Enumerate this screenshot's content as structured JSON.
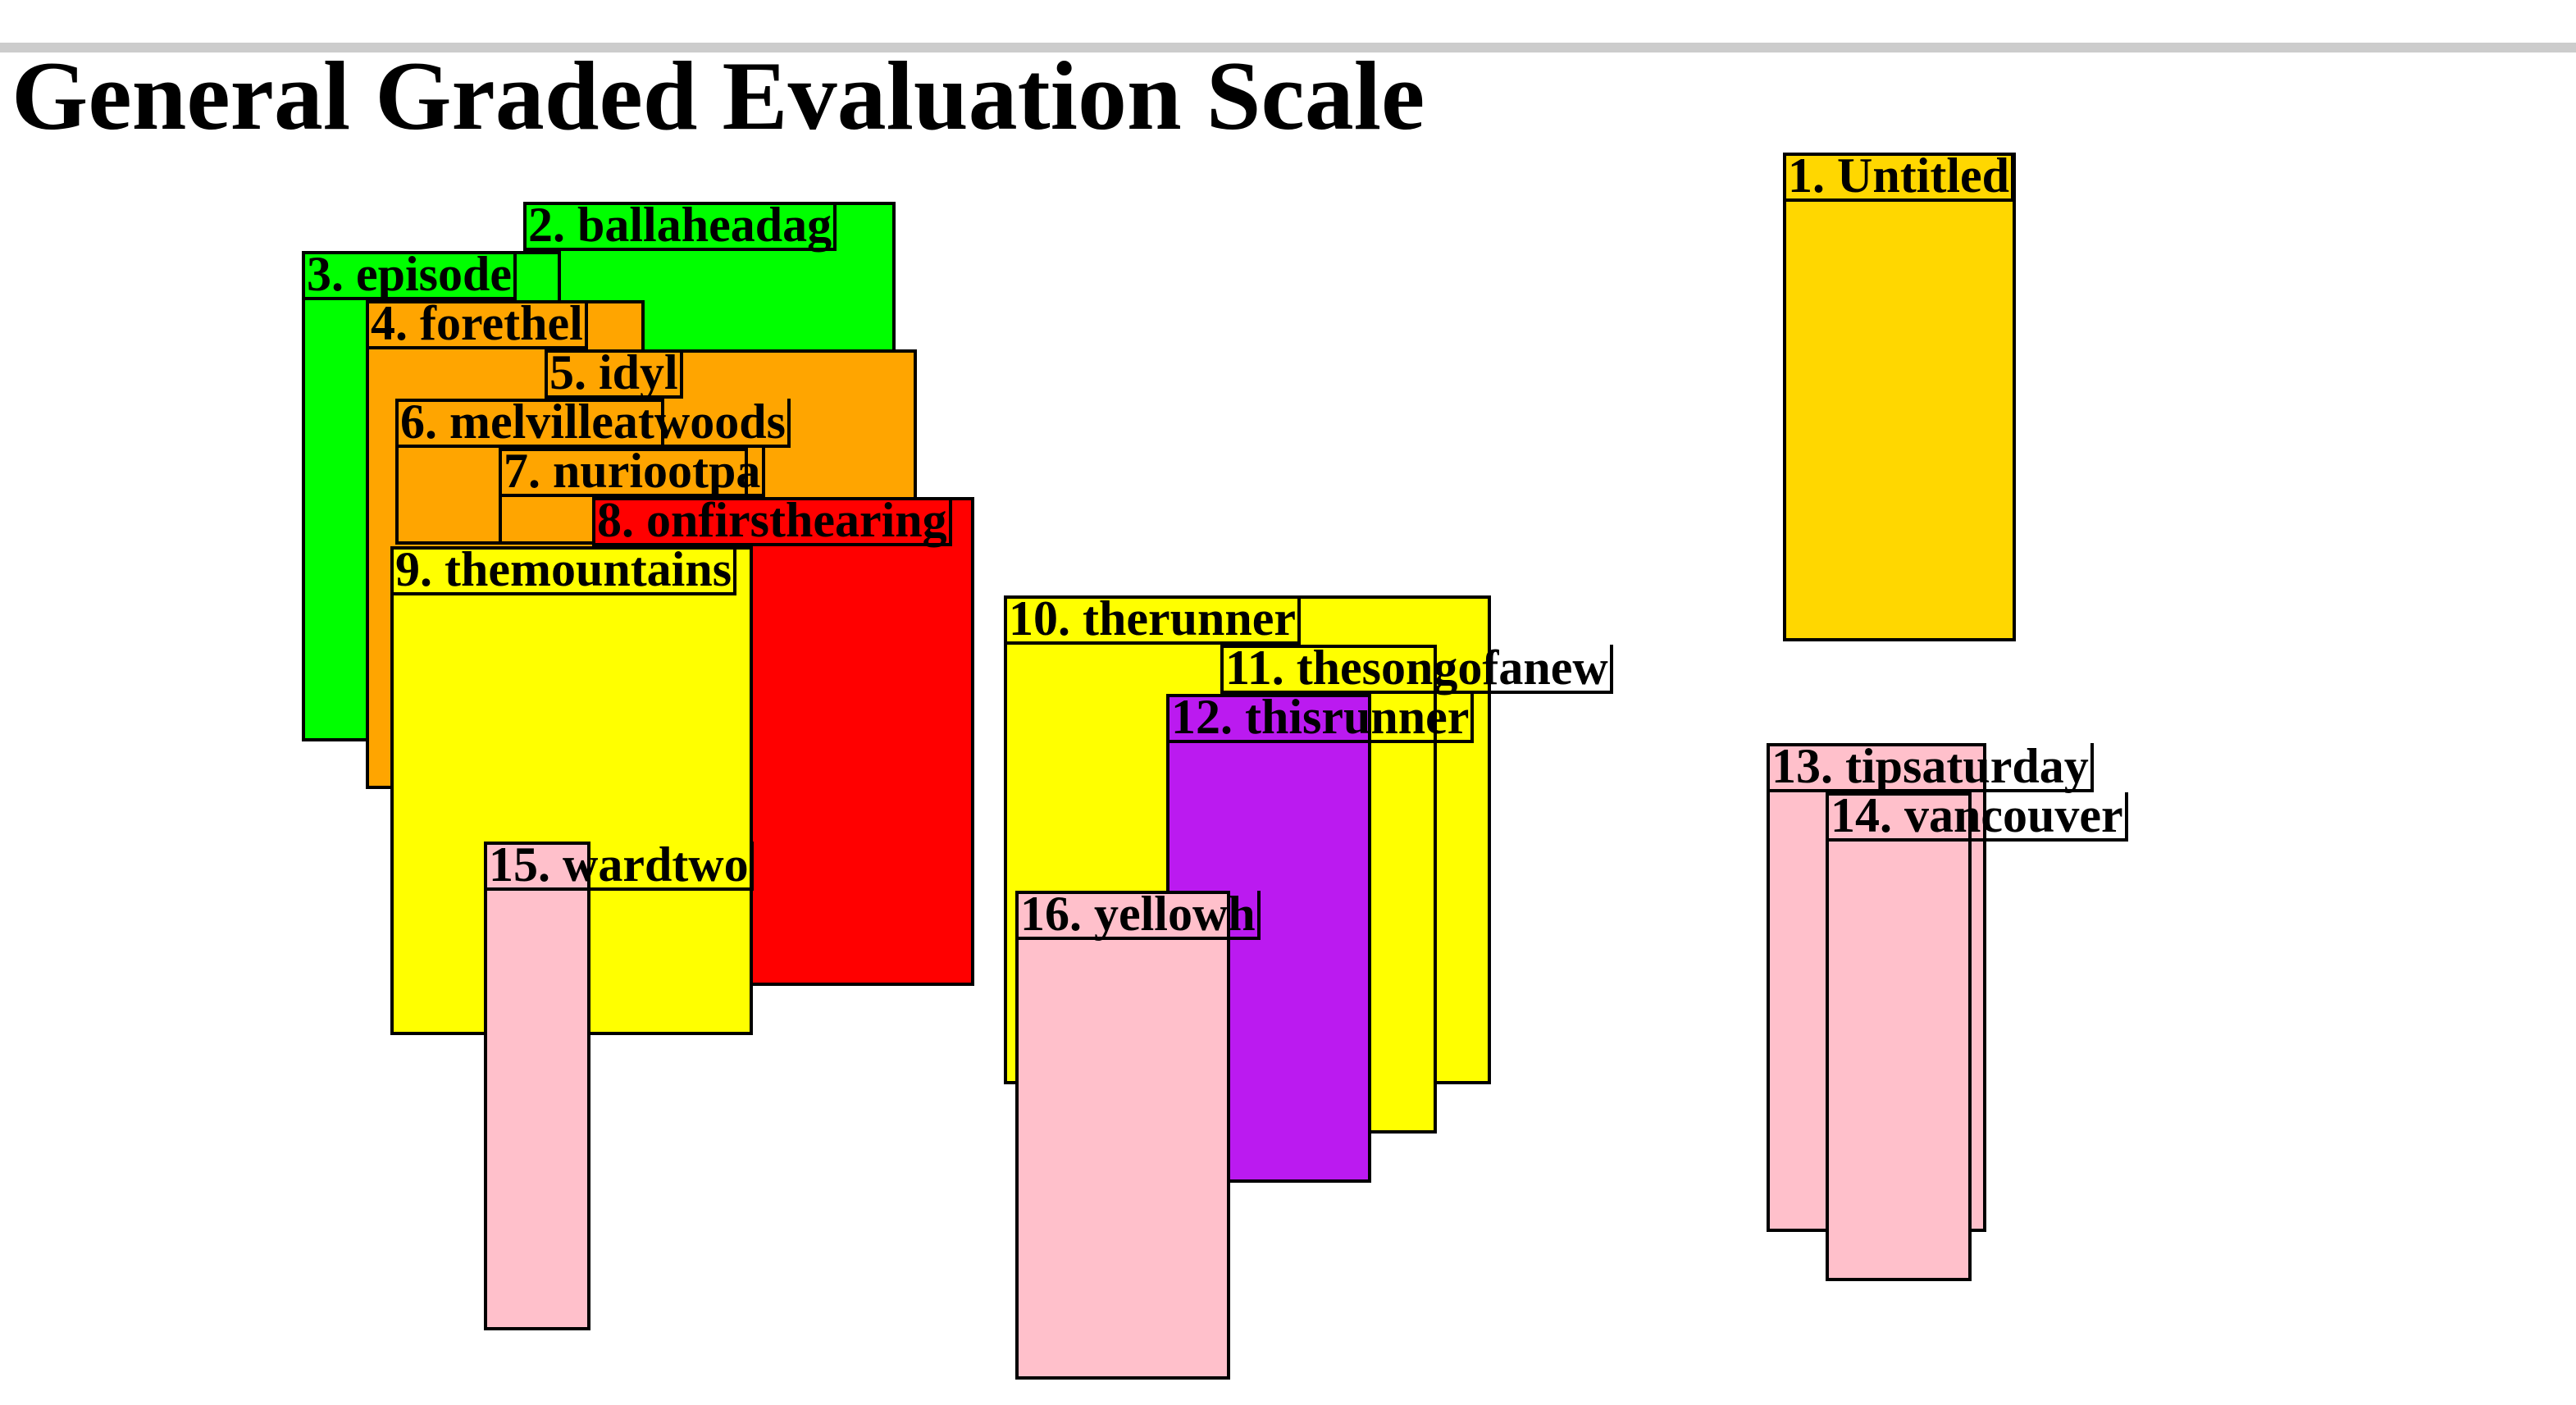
{
  "page": {
    "title": "General Graded Evaluation Scale"
  },
  "items": [
    {
      "label": "1. Untitled",
      "color": "#ffd700"
    },
    {
      "label": "2. ballaheadag",
      "color": "#00ff00"
    },
    {
      "label": "3. episode",
      "color": "#00ff00"
    },
    {
      "label": "4. forethel",
      "color": "#ffa500"
    },
    {
      "label": "5. idyl",
      "color": "#ffa500"
    },
    {
      "label": "6. melvilleatwoods",
      "color": "#ffa500"
    },
    {
      "label": "7. nuriootpa",
      "color": "#ffa500"
    },
    {
      "label": "8. onfirsthearing",
      "color": "#ff0000"
    },
    {
      "label": "9. themountains",
      "color": "#ffff00"
    },
    {
      "label": "10. therunner",
      "color": "#ffff00"
    },
    {
      "label": "11. thesongofanew",
      "color": "#ffff00"
    },
    {
      "label": "12. thisrunner",
      "color": "#bb1af0"
    },
    {
      "label": "13. tipsaturday",
      "color": "#ffc0cb"
    },
    {
      "label": "14. vancouver",
      "color": "#ffc0cb"
    },
    {
      "label": "15. wardtwo",
      "color": "#ffc0cb"
    },
    {
      "label": "16. yellowh",
      "color": "#ffc0cb"
    }
  ]
}
